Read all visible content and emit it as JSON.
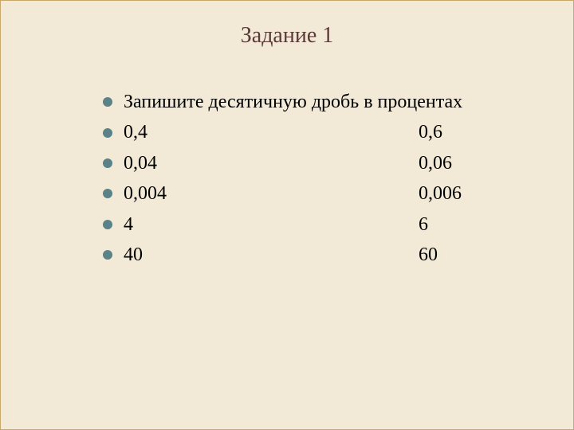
{
  "title": "Задание 1",
  "instruction": "Запишите десятичную дробь в процентах",
  "rows": [
    {
      "left": "0,4",
      "right": "0,6"
    },
    {
      "left": "0,04",
      "right": "0,06"
    },
    {
      "left": "0,004",
      "right": "0,006"
    },
    {
      "left": "4",
      "right": "6"
    },
    {
      "left": "40",
      "right": "60"
    }
  ],
  "colors": {
    "background": "#f2ead7",
    "border": "#c9a86a",
    "title": "#5b3a3a",
    "bullet": "#5a8288",
    "text": "#000000"
  },
  "typography": {
    "title_fontsize": 28,
    "body_fontsize": 24,
    "font_family": "Times New Roman"
  }
}
